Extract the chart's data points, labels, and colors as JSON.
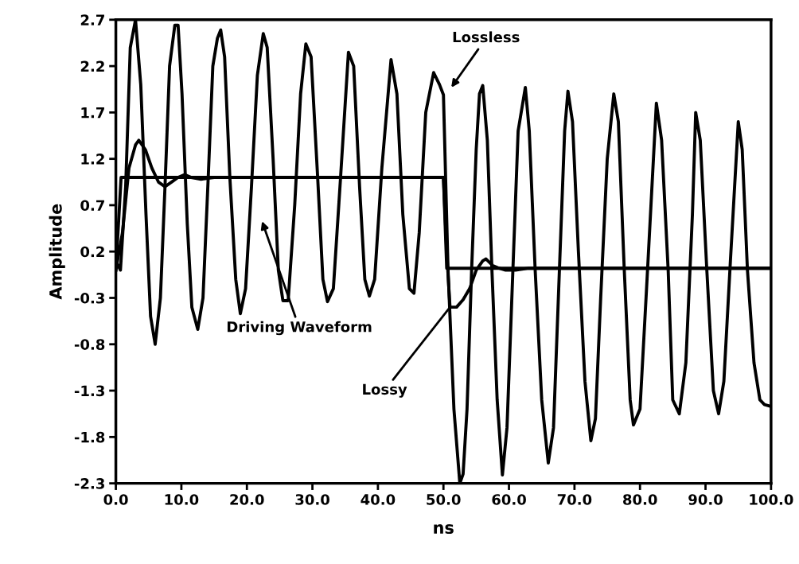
{
  "chart_data": {
    "type": "line",
    "xlabel": "ns",
    "ylabel": "Amplitude",
    "xlim": [
      0,
      100
    ],
    "ylim": [
      -2.3,
      2.7
    ],
    "xticks": [
      {
        "value": 0,
        "label": "0.0"
      },
      {
        "value": 10,
        "label": "10.0"
      },
      {
        "value": 20,
        "label": "20.0"
      },
      {
        "value": 30,
        "label": "30.0"
      },
      {
        "value": 40,
        "label": "40.0"
      },
      {
        "value": 50,
        "label": "50.0"
      },
      {
        "value": 60,
        "label": "60.0"
      },
      {
        "value": 70,
        "label": "70.0"
      },
      {
        "value": 80,
        "label": "80.0"
      },
      {
        "value": 90,
        "label": "90.0"
      },
      {
        "value": 100,
        "label": "100.0"
      }
    ],
    "yticks": [
      -2.3,
      -1.8,
      -1.3,
      -0.8,
      -0.3,
      0.2,
      0.7,
      1.2,
      1.7,
      2.2,
      2.7
    ],
    "grid": false,
    "legend": false,
    "marker": "none",
    "line_style": "solid",
    "series": [
      {
        "color": "#000000",
        "x": [
          0,
          0.7,
          1.5,
          2.2,
          3,
          3.8,
          4.6,
          5.3,
          6,
          6.8,
          7.5,
          8.2,
          9,
          9.5,
          10.1,
          10.9,
          11.6,
          12.5,
          13.3,
          14.1,
          14.8,
          15.5,
          16,
          16.6,
          17.4,
          18.3,
          19,
          19.8,
          20.7,
          21.6,
          22.5,
          23.1,
          24,
          24.8,
          25.5,
          26.3,
          27.3,
          28.2,
          29,
          29.8,
          30.8,
          31.6,
          32.3,
          33.2,
          34.3,
          35.5,
          36.3,
          37.2,
          38,
          38.7,
          39.5,
          40.6,
          42,
          42.9,
          43.8,
          44.8,
          45.5,
          46.3,
          47.3,
          48.5,
          49.4,
          50,
          50.7,
          51.6,
          52.5,
          53,
          53.6,
          54.3,
          55,
          55.5,
          56,
          56.7,
          57.4,
          58.2,
          59,
          59.7,
          60.6,
          61.4,
          62.1,
          62.5,
          63.1,
          64,
          65,
          66,
          66.8,
          67.7,
          68.5,
          69,
          69.7,
          70.6,
          71.6,
          72.5,
          73.2,
          74,
          75,
          76,
          76.7,
          77.6,
          78.5,
          79,
          80,
          81,
          82.5,
          83.3,
          84.3,
          85,
          86,
          87,
          88,
          88.5,
          89.2,
          90.2,
          91.2,
          92,
          92.8,
          93.8,
          95,
          95.6,
          96.4,
          97.4,
          98.3,
          99,
          100
        ],
        "values": [
          0.1,
          0.0,
          0.9,
          2.4,
          2.7,
          2.0,
          0.6,
          -0.5,
          -0.8,
          -0.3,
          0.9,
          2.2,
          2.64,
          2.64,
          1.9,
          0.5,
          -0.4,
          -0.64,
          -0.3,
          1.0,
          2.2,
          2.5,
          2.59,
          2.3,
          1.0,
          -0.1,
          -0.47,
          -0.2,
          0.9,
          2.1,
          2.55,
          2.4,
          1.2,
          0.0,
          -0.33,
          -0.33,
          0.7,
          1.9,
          2.44,
          2.3,
          1.0,
          -0.1,
          -0.34,
          -0.2,
          1.0,
          2.35,
          2.2,
          0.9,
          -0.1,
          -0.28,
          -0.1,
          1.1,
          2.27,
          1.9,
          0.6,
          -0.2,
          -0.25,
          0.4,
          1.7,
          2.13,
          2.0,
          1.89,
          0.0,
          -1.5,
          -2.3,
          -2.2,
          -1.5,
          0.0,
          1.3,
          1.9,
          1.99,
          1.4,
          0.0,
          -1.4,
          -2.21,
          -1.7,
          0.0,
          1.5,
          1.8,
          1.97,
          1.5,
          0.0,
          -1.4,
          -2.08,
          -1.7,
          0.0,
          1.5,
          1.93,
          1.6,
          0.2,
          -1.2,
          -1.84,
          -1.6,
          -0.3,
          1.2,
          1.9,
          1.6,
          0.0,
          -1.4,
          -1.67,
          -1.5,
          -0.2,
          1.8,
          1.4,
          0.0,
          -1.4,
          -1.55,
          -1.0,
          0.6,
          1.7,
          1.4,
          0.0,
          -1.3,
          -1.55,
          -1.2,
          0.1,
          1.6,
          1.3,
          0.0,
          -1.0,
          -1.4,
          -1.45,
          -1.47
        ]
      },
      {
        "color": "#000000",
        "x": [
          0,
          1,
          2,
          3,
          3.5,
          4.5,
          5.5,
          6.5,
          7.5,
          8.5,
          9.5,
          10.5,
          11.5,
          13,
          15,
          50,
          50.5,
          51,
          52,
          53,
          54,
          55,
          56,
          56.5,
          57.5,
          58.5,
          59.5,
          61,
          63,
          100
        ],
        "values": [
          0,
          0.4,
          1.1,
          1.35,
          1.4,
          1.3,
          1.1,
          0.95,
          0.9,
          0.95,
          1.0,
          1.03,
          1.0,
          0.98,
          1.0,
          1.0,
          0.2,
          -0.4,
          -0.4,
          -0.32,
          -0.2,
          0.0,
          0.1,
          0.12,
          0.05,
          0.02,
          0.0,
          0.0,
          0.02,
          0.02
        ]
      },
      {
        "color": "#000000",
        "x": [
          0,
          0.8,
          50,
          50.5,
          100
        ],
        "values": [
          0,
          1.0,
          1.0,
          0.02,
          0.02
        ]
      }
    ],
    "annotations": [
      "Lossless",
      "Driving Waveform",
      {
        "text": "Lossy",
        "x": 51,
        "y": -0.4
      }
    ]
  }
}
